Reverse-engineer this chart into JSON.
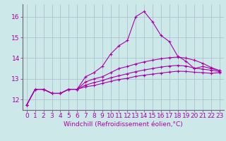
{
  "xlabel": "Windchill (Refroidissement éolien,°C)",
  "background_color": "#cce8e8",
  "line_color": "#aa00aa",
  "xlim": [
    -0.5,
    23.5
  ],
  "ylim": [
    11.5,
    16.6
  ],
  "yticks": [
    12,
    13,
    14,
    15,
    16
  ],
  "xticks": [
    0,
    1,
    2,
    3,
    4,
    5,
    6,
    7,
    8,
    9,
    10,
    11,
    12,
    13,
    14,
    15,
    16,
    17,
    18,
    19,
    20,
    21,
    22,
    23
  ],
  "line1_x": [
    0,
    1,
    2,
    3,
    4,
    5,
    6,
    7,
    8,
    9,
    10,
    11,
    12,
    13,
    14,
    15,
    16,
    17,
    18,
    19,
    20,
    21,
    22,
    23
  ],
  "line1_y": [
    11.75,
    12.5,
    12.5,
    12.3,
    12.3,
    12.5,
    12.5,
    13.1,
    13.3,
    13.6,
    14.2,
    14.6,
    14.85,
    16.0,
    16.25,
    15.75,
    15.1,
    14.8,
    14.1,
    13.85,
    13.5,
    13.6,
    13.5,
    13.4
  ],
  "line2_x": [
    0,
    1,
    2,
    3,
    4,
    5,
    6,
    7,
    8,
    9,
    10,
    11,
    12,
    13,
    14,
    15,
    16,
    17,
    18,
    19,
    20,
    21,
    22,
    23
  ],
  "line2_y": [
    11.75,
    12.5,
    12.5,
    12.3,
    12.3,
    12.5,
    12.5,
    12.85,
    13.0,
    13.1,
    13.3,
    13.5,
    13.6,
    13.72,
    13.82,
    13.9,
    13.97,
    14.02,
    14.05,
    14.0,
    13.9,
    13.75,
    13.55,
    13.4
  ],
  "line3_x": [
    0,
    1,
    2,
    3,
    4,
    5,
    6,
    7,
    8,
    9,
    10,
    11,
    12,
    13,
    14,
    15,
    16,
    17,
    18,
    19,
    20,
    21,
    22,
    23
  ],
  "line3_y": [
    11.75,
    12.5,
    12.5,
    12.3,
    12.3,
    12.5,
    12.5,
    12.7,
    12.82,
    12.92,
    13.05,
    13.15,
    13.25,
    13.35,
    13.43,
    13.5,
    13.57,
    13.62,
    13.65,
    13.62,
    13.52,
    13.47,
    13.42,
    13.35
  ],
  "line4_x": [
    0,
    1,
    2,
    3,
    4,
    5,
    6,
    7,
    8,
    9,
    10,
    11,
    12,
    13,
    14,
    15,
    16,
    17,
    18,
    19,
    20,
    21,
    22,
    23
  ],
  "line4_y": [
    11.75,
    12.5,
    12.5,
    12.3,
    12.3,
    12.5,
    12.5,
    12.62,
    12.68,
    12.78,
    12.88,
    12.97,
    13.03,
    13.12,
    13.18,
    13.23,
    13.28,
    13.33,
    13.37,
    13.36,
    13.32,
    13.3,
    13.27,
    13.3
  ],
  "grid_color": "#aabbcc",
  "font_size": 6.5
}
